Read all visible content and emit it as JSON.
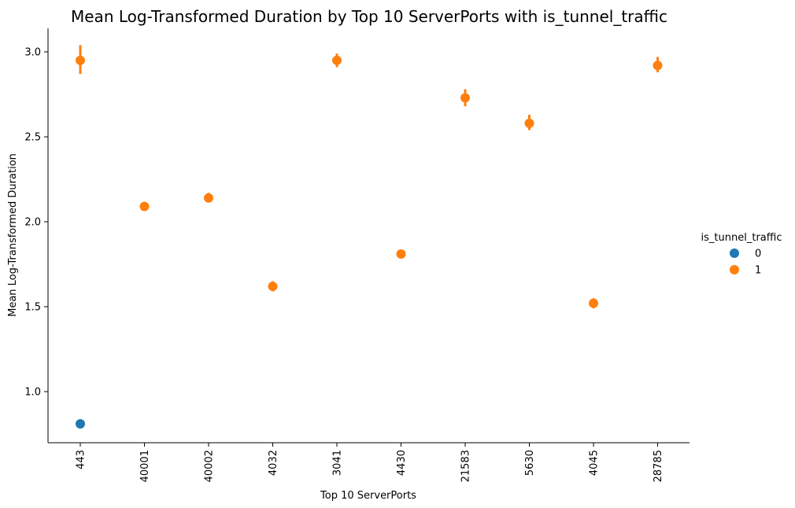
{
  "chart_data": {
    "type": "scatter",
    "title": "Mean Log-Transformed Duration by Top 10 ServerPorts with is_tunnel_traffic",
    "xlabel": "Top 10 ServerPorts",
    "ylabel": "Mean Log-Transformed Duration",
    "categories": [
      "443",
      "40001",
      "40002",
      "4032",
      "3041",
      "4430",
      "21583",
      "5630",
      "4045",
      "28785"
    ],
    "ylim": [
      0.69,
      3.15
    ],
    "yticks": [
      "1.0",
      "1.5",
      "2.0",
      "2.5",
      "3.0"
    ],
    "grid": false,
    "legend": {
      "title": "is_tunnel_traffic",
      "placement": "right"
    },
    "series": [
      {
        "name": "0",
        "color": "#1f77b4",
        "points": [
          {
            "x": "443",
            "y": 0.81,
            "err": [
              0.81,
              0.81
            ]
          }
        ]
      },
      {
        "name": "1",
        "color": "#ff7f0e",
        "points": [
          {
            "x": "443",
            "y": 2.95,
            "err": [
              2.87,
              3.04
            ]
          },
          {
            "x": "40001",
            "y": 2.09,
            "err": [
              2.08,
              2.1
            ]
          },
          {
            "x": "40002",
            "y": 2.14,
            "err": [
              2.12,
              2.17
            ]
          },
          {
            "x": "4032",
            "y": 1.62,
            "err": [
              1.59,
              1.65
            ]
          },
          {
            "x": "3041",
            "y": 2.95,
            "err": [
              2.91,
              2.99
            ]
          },
          {
            "x": "4430",
            "y": 1.81,
            "err": [
              1.8,
              1.83
            ]
          },
          {
            "x": "21583",
            "y": 2.73,
            "err": [
              2.68,
              2.78
            ]
          },
          {
            "x": "5630",
            "y": 2.58,
            "err": [
              2.54,
              2.63
            ]
          },
          {
            "x": "4045",
            "y": 1.52,
            "err": [
              1.49,
              1.55
            ]
          },
          {
            "x": "28785",
            "y": 2.92,
            "err": [
              2.88,
              2.97
            ]
          }
        ]
      }
    ]
  }
}
